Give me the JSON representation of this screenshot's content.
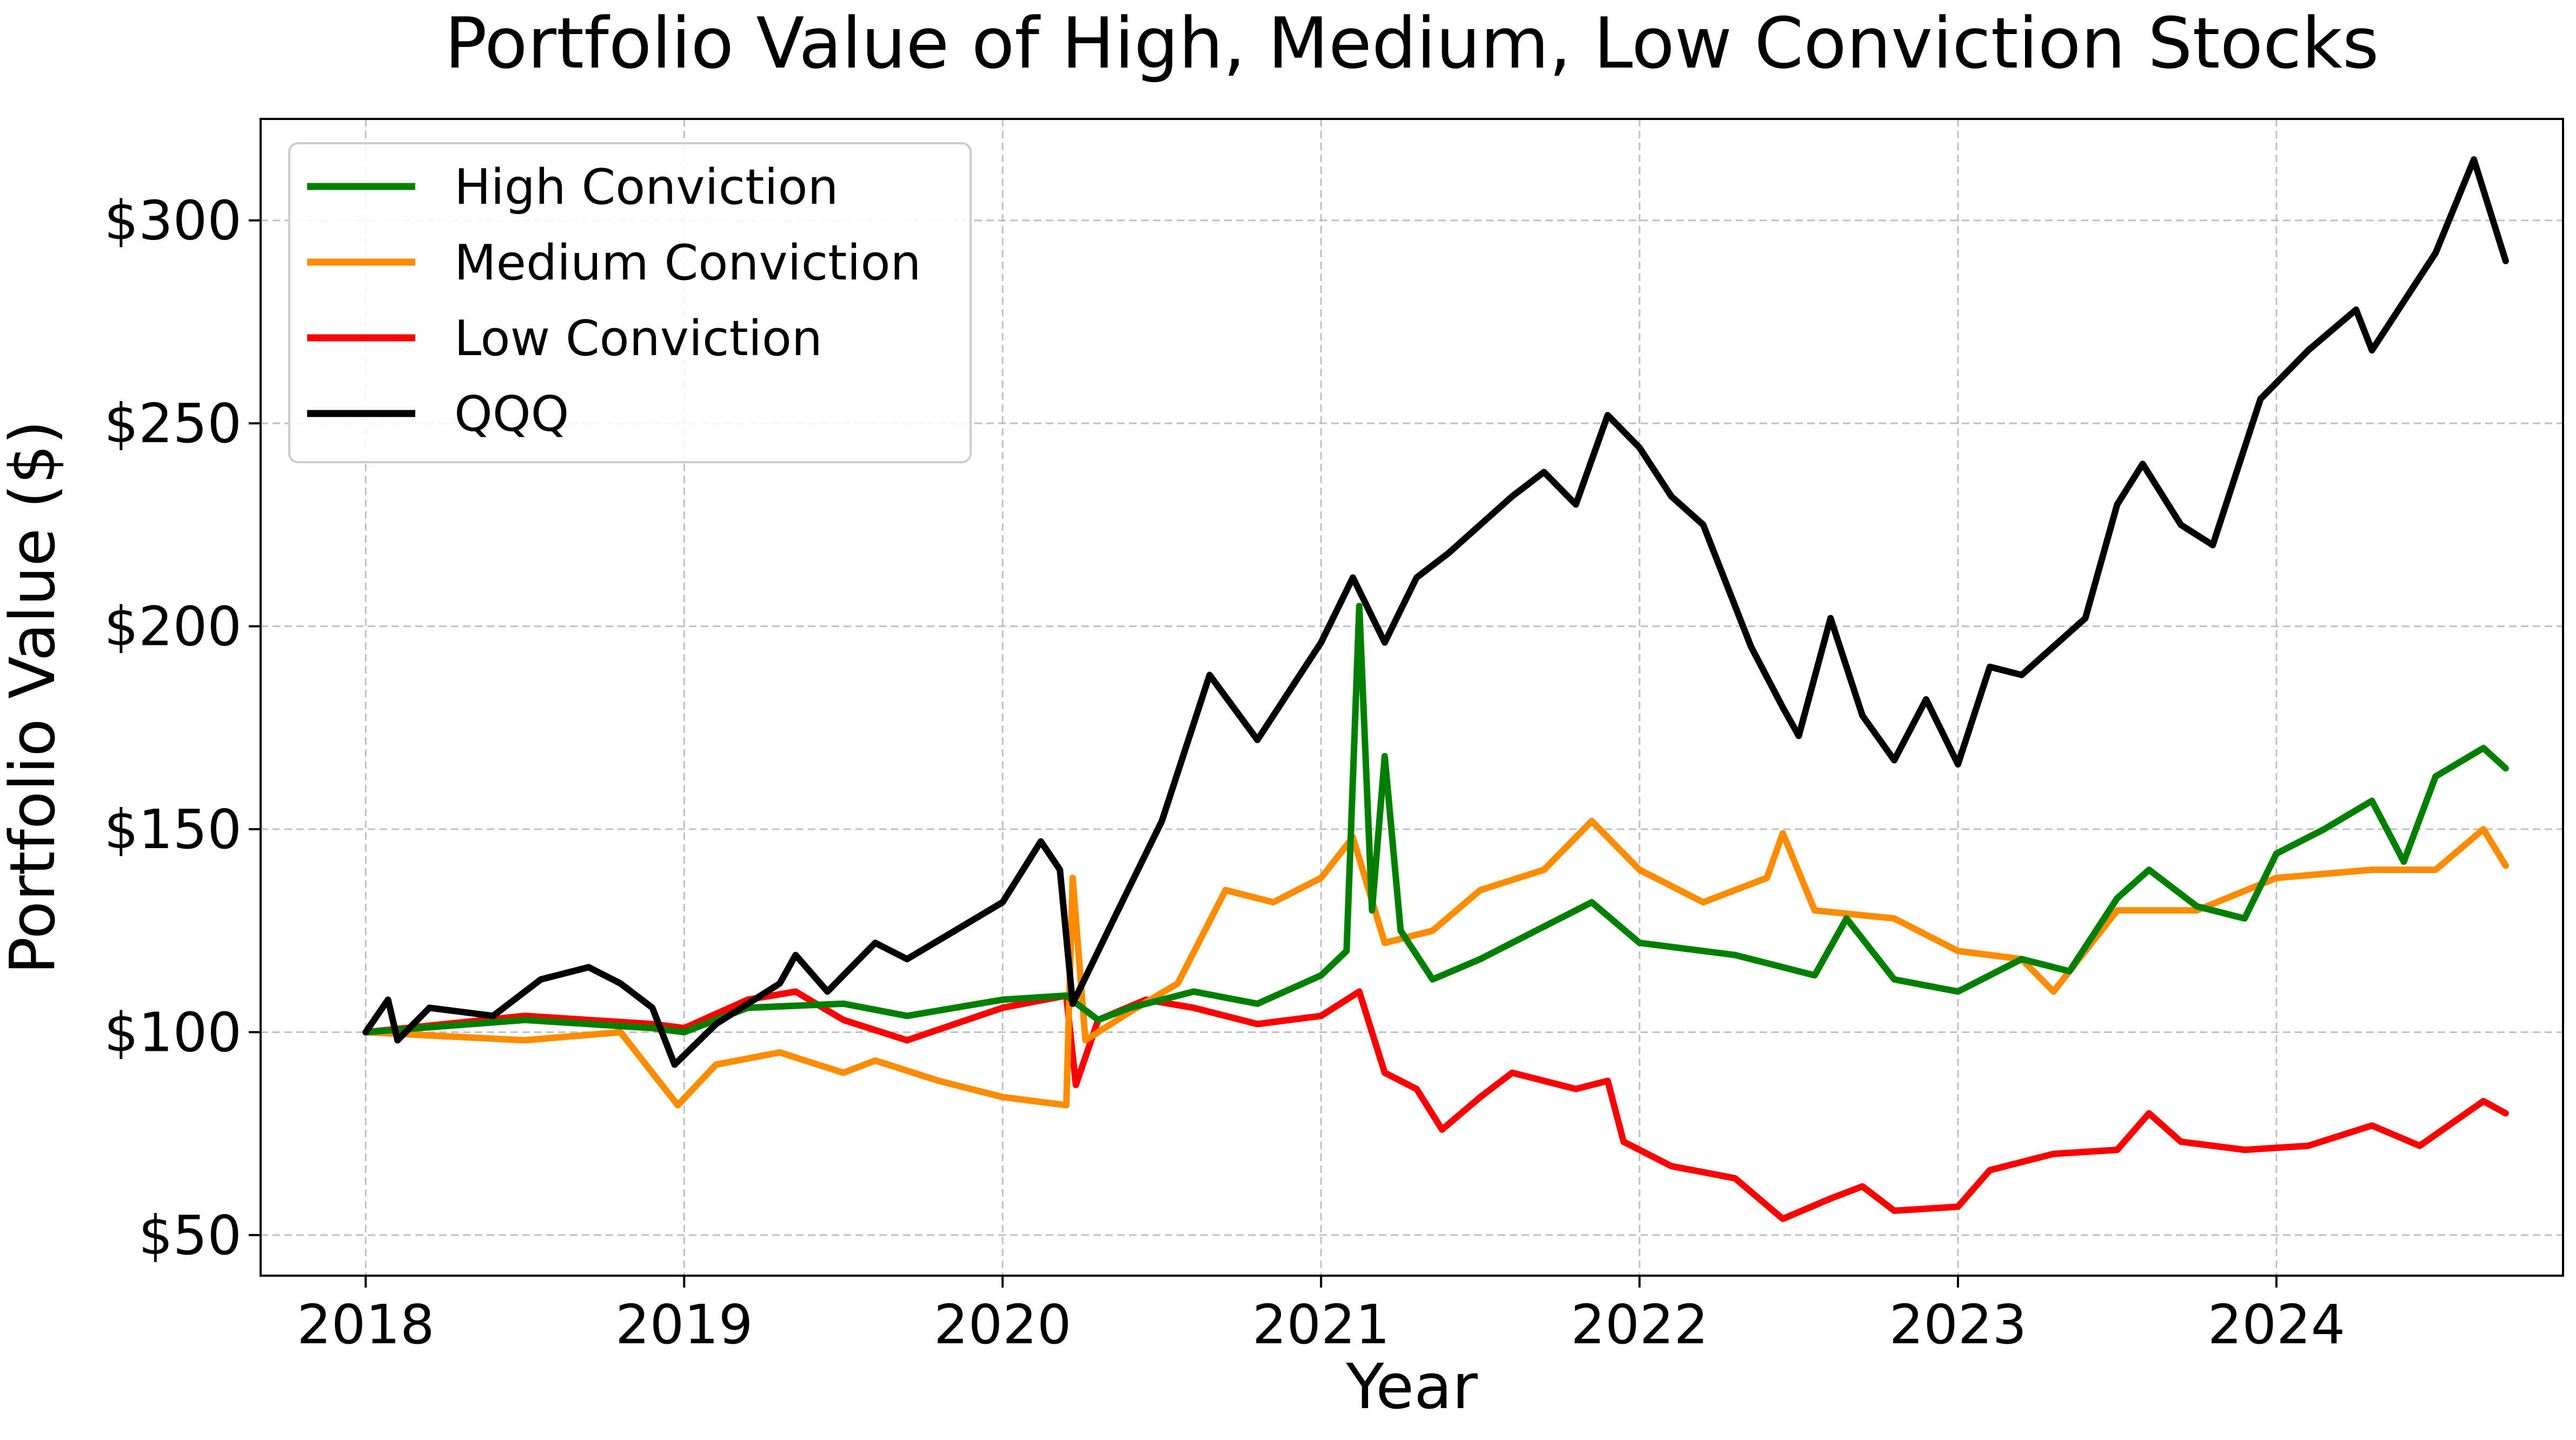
{
  "chart_data": {
    "type": "line",
    "title": "Portfolio Value of High, Medium, Low Conviction Stocks",
    "xlabel": "Year",
    "ylabel": "Portfolio Value ($)",
    "xlim": [
      2017.67,
      2024.9
    ],
    "ylim": [
      40,
      325
    ],
    "x_ticks": [
      2018,
      2019,
      2020,
      2021,
      2022,
      2023,
      2024
    ],
    "x_tick_labels": [
      "2018",
      "2019",
      "2020",
      "2021",
      "2022",
      "2023",
      "2024"
    ],
    "y_ticks": [
      50,
      100,
      150,
      200,
      250,
      300
    ],
    "y_tick_labels": [
      "$50",
      "$100",
      "$150",
      "$200",
      "$250",
      "$300"
    ],
    "grid": true,
    "legend_position": "upper left",
    "series": [
      {
        "name": "High Conviction",
        "color": "#008000",
        "points": [
          [
            2018.0,
            100
          ],
          [
            2018.5,
            103
          ],
          [
            2018.9,
            101
          ],
          [
            2019.0,
            100
          ],
          [
            2019.2,
            106
          ],
          [
            2019.5,
            107
          ],
          [
            2019.7,
            104
          ],
          [
            2020.0,
            108
          ],
          [
            2020.2,
            109
          ],
          [
            2020.3,
            103
          ],
          [
            2020.4,
            106
          ],
          [
            2020.6,
            110
          ],
          [
            2020.8,
            107
          ],
          [
            2021.0,
            114
          ],
          [
            2021.08,
            120
          ],
          [
            2021.12,
            205
          ],
          [
            2021.16,
            130
          ],
          [
            2021.2,
            168
          ],
          [
            2021.25,
            125
          ],
          [
            2021.35,
            113
          ],
          [
            2021.5,
            118
          ],
          [
            2021.7,
            126
          ],
          [
            2021.85,
            132
          ],
          [
            2022.0,
            122
          ],
          [
            2022.3,
            119
          ],
          [
            2022.55,
            114
          ],
          [
            2022.65,
            128
          ],
          [
            2022.8,
            113
          ],
          [
            2023.0,
            110
          ],
          [
            2023.2,
            118
          ],
          [
            2023.35,
            115
          ],
          [
            2023.5,
            133
          ],
          [
            2023.6,
            140
          ],
          [
            2023.75,
            131
          ],
          [
            2023.9,
            128
          ],
          [
            2024.0,
            144
          ],
          [
            2024.15,
            150
          ],
          [
            2024.3,
            157
          ],
          [
            2024.4,
            142
          ],
          [
            2024.5,
            163
          ],
          [
            2024.65,
            170
          ],
          [
            2024.72,
            165
          ]
        ]
      },
      {
        "name": "Medium Conviction",
        "color": "#ff8c00",
        "points": [
          [
            2018.0,
            100
          ],
          [
            2018.5,
            98
          ],
          [
            2018.8,
            100
          ],
          [
            2018.98,
            82
          ],
          [
            2019.1,
            92
          ],
          [
            2019.3,
            95
          ],
          [
            2019.5,
            90
          ],
          [
            2019.6,
            93
          ],
          [
            2019.8,
            88
          ],
          [
            2020.0,
            84
          ],
          [
            2020.2,
            82
          ],
          [
            2020.22,
            138
          ],
          [
            2020.26,
            98
          ],
          [
            2020.4,
            105
          ],
          [
            2020.55,
            112
          ],
          [
            2020.7,
            135
          ],
          [
            2020.85,
            132
          ],
          [
            2021.0,
            138
          ],
          [
            2021.1,
            148
          ],
          [
            2021.2,
            122
          ],
          [
            2021.35,
            125
          ],
          [
            2021.5,
            135
          ],
          [
            2021.7,
            140
          ],
          [
            2021.85,
            152
          ],
          [
            2022.0,
            140
          ],
          [
            2022.2,
            132
          ],
          [
            2022.4,
            138
          ],
          [
            2022.45,
            149
          ],
          [
            2022.55,
            130
          ],
          [
            2022.8,
            128
          ],
          [
            2023.0,
            120
          ],
          [
            2023.2,
            118
          ],
          [
            2023.3,
            110
          ],
          [
            2023.5,
            130
          ],
          [
            2023.75,
            130
          ],
          [
            2024.0,
            138
          ],
          [
            2024.3,
            140
          ],
          [
            2024.5,
            140
          ],
          [
            2024.65,
            150
          ],
          [
            2024.72,
            141
          ]
        ]
      },
      {
        "name": "Low Conviction",
        "color": "#ff0000",
        "points": [
          [
            2018.0,
            100
          ],
          [
            2018.5,
            104
          ],
          [
            2018.9,
            102
          ],
          [
            2019.0,
            101
          ],
          [
            2019.2,
            108
          ],
          [
            2019.35,
            110
          ],
          [
            2019.5,
            103
          ],
          [
            2019.7,
            98
          ],
          [
            2020.0,
            106
          ],
          [
            2020.2,
            109
          ],
          [
            2020.23,
            87
          ],
          [
            2020.3,
            103
          ],
          [
            2020.45,
            108
          ],
          [
            2020.6,
            106
          ],
          [
            2020.8,
            102
          ],
          [
            2021.0,
            104
          ],
          [
            2021.12,
            110
          ],
          [
            2021.2,
            90
          ],
          [
            2021.3,
            86
          ],
          [
            2021.38,
            76
          ],
          [
            2021.5,
            84
          ],
          [
            2021.6,
            90
          ],
          [
            2021.8,
            86
          ],
          [
            2021.9,
            88
          ],
          [
            2021.95,
            73
          ],
          [
            2022.1,
            67
          ],
          [
            2022.3,
            64
          ],
          [
            2022.45,
            54
          ],
          [
            2022.6,
            59
          ],
          [
            2022.7,
            62
          ],
          [
            2022.8,
            56
          ],
          [
            2023.0,
            57
          ],
          [
            2023.1,
            66
          ],
          [
            2023.3,
            70
          ],
          [
            2023.5,
            71
          ],
          [
            2023.6,
            80
          ],
          [
            2023.7,
            73
          ],
          [
            2023.9,
            71
          ],
          [
            2024.1,
            72
          ],
          [
            2024.3,
            77
          ],
          [
            2024.45,
            72
          ],
          [
            2024.65,
            83
          ],
          [
            2024.72,
            80
          ]
        ]
      },
      {
        "name": "QQQ",
        "color": "#000000",
        "points": [
          [
            2018.0,
            100
          ],
          [
            2018.07,
            108
          ],
          [
            2018.1,
            98
          ],
          [
            2018.2,
            106
          ],
          [
            2018.4,
            104
          ],
          [
            2018.55,
            113
          ],
          [
            2018.7,
            116
          ],
          [
            2018.8,
            112
          ],
          [
            2018.9,
            106
          ],
          [
            2018.97,
            92
          ],
          [
            2019.1,
            102
          ],
          [
            2019.3,
            112
          ],
          [
            2019.35,
            119
          ],
          [
            2019.45,
            110
          ],
          [
            2019.6,
            122
          ],
          [
            2019.7,
            118
          ],
          [
            2019.85,
            125
          ],
          [
            2020.0,
            132
          ],
          [
            2020.12,
            147
          ],
          [
            2020.18,
            140
          ],
          [
            2020.22,
            107
          ],
          [
            2020.35,
            128
          ],
          [
            2020.5,
            152
          ],
          [
            2020.65,
            188
          ],
          [
            2020.8,
            172
          ],
          [
            2021.0,
            196
          ],
          [
            2021.1,
            212
          ],
          [
            2021.2,
            196
          ],
          [
            2021.3,
            212
          ],
          [
            2021.4,
            218
          ],
          [
            2021.6,
            232
          ],
          [
            2021.7,
            238
          ],
          [
            2021.8,
            230
          ],
          [
            2021.9,
            252
          ],
          [
            2022.0,
            244
          ],
          [
            2022.1,
            232
          ],
          [
            2022.2,
            225
          ],
          [
            2022.35,
            195
          ],
          [
            2022.45,
            180
          ],
          [
            2022.5,
            173
          ],
          [
            2022.6,
            202
          ],
          [
            2022.7,
            178
          ],
          [
            2022.8,
            167
          ],
          [
            2022.9,
            182
          ],
          [
            2023.0,
            166
          ],
          [
            2023.1,
            190
          ],
          [
            2023.2,
            188
          ],
          [
            2023.4,
            202
          ],
          [
            2023.5,
            230
          ],
          [
            2023.58,
            240
          ],
          [
            2023.7,
            225
          ],
          [
            2023.8,
            220
          ],
          [
            2023.95,
            256
          ],
          [
            2024.1,
            268
          ],
          [
            2024.25,
            278
          ],
          [
            2024.3,
            268
          ],
          [
            2024.4,
            280
          ],
          [
            2024.5,
            292
          ],
          [
            2024.62,
            315
          ],
          [
            2024.68,
            300
          ],
          [
            2024.72,
            290
          ]
        ]
      }
    ]
  }
}
